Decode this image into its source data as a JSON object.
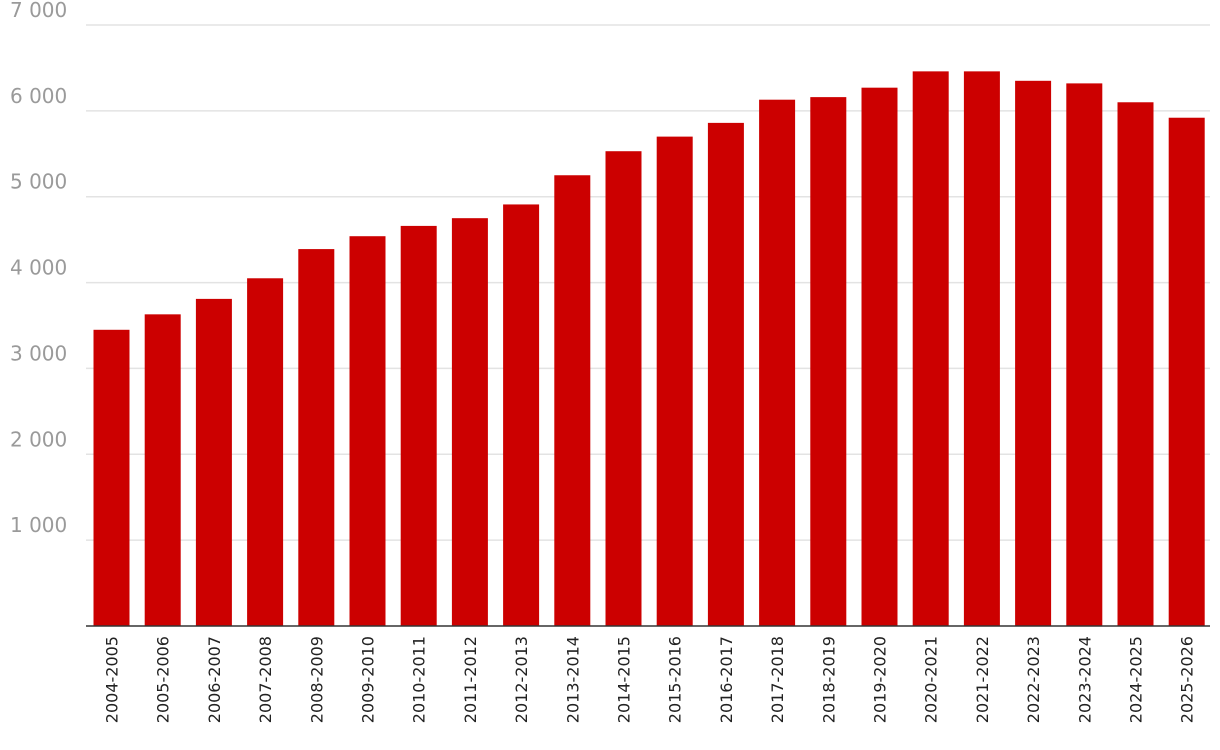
{
  "chart_data": {
    "type": "bar",
    "title": "",
    "xlabel": "",
    "ylabel": "",
    "ylim": [
      0,
      7000
    ],
    "grid": true,
    "legend": "none",
    "bar_color": "#cc0000",
    "y_ticks": [
      {
        "value": 1000,
        "label": "1 000"
      },
      {
        "value": 2000,
        "label": "2 000"
      },
      {
        "value": 3000,
        "label": "3 000"
      },
      {
        "value": 4000,
        "label": "4 000"
      },
      {
        "value": 5000,
        "label": "5 000"
      },
      {
        "value": 6000,
        "label": "6 000"
      },
      {
        "value": 7000,
        "label": "7 000"
      }
    ],
    "categories": [
      "2004-2005",
      "2005-2006",
      "2006-2007",
      "2007-2008",
      "2008-2009",
      "2009-2010",
      "2010-2011",
      "2011-2012",
      "2012-2013",
      "2013-2014",
      "2014-2015",
      "2015-2016",
      "2016-2017",
      "2017-2018",
      "2018-2019",
      "2019-2020",
      "2020-2021",
      "2021-2022",
      "2022-2023",
      "2023-2024",
      "2024-2025",
      "2025-2026"
    ],
    "values": [
      3450,
      3630,
      3810,
      4050,
      4390,
      4540,
      4660,
      4750,
      4910,
      5250,
      5530,
      5700,
      5860,
      6130,
      6160,
      6270,
      6460,
      6460,
      6350,
      6320,
      6100,
      5920
    ]
  }
}
